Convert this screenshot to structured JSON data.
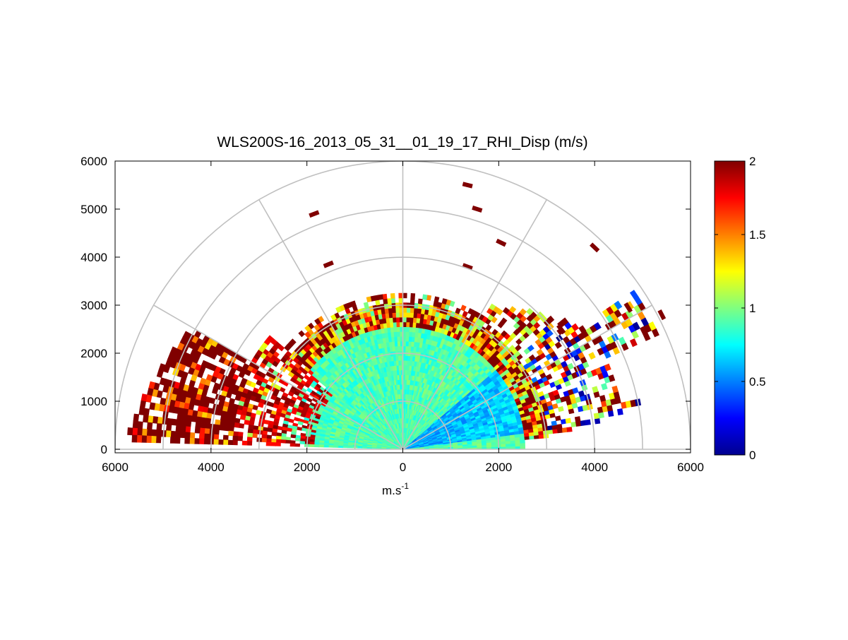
{
  "chart_data": {
    "type": "heatmap",
    "title": "WLS200S-16_2013_05_31__01_19_17_RHI_Disp (m/s)",
    "xlabel": "m.s",
    "xlabel_superscript": "-1",
    "ylabel": "",
    "xlim": [
      -6000,
      6000
    ],
    "ylim": [
      0,
      6000
    ],
    "x_ticks": [
      -6000,
      -4000,
      -2000,
      0,
      2000,
      4000,
      6000
    ],
    "x_tick_labels": [
      "6000",
      "4000",
      "2000",
      "0",
      "2000",
      "4000",
      "6000"
    ],
    "y_ticks": [
      0,
      1000,
      2000,
      3000,
      4000,
      5000,
      6000
    ],
    "y_tick_labels": [
      "0",
      "1000",
      "2000",
      "3000",
      "4000",
      "5000",
      "6000"
    ],
    "polar_grid": {
      "rings": [
        1000,
        2000,
        3000,
        4000,
        5000,
        6000
      ],
      "spokes_deg": [
        0,
        30,
        60,
        90,
        120,
        150,
        180
      ]
    },
    "colorbar": {
      "colormap": "jet",
      "range": [
        0,
        2
      ],
      "ticks": [
        0,
        0.5,
        1,
        1.5,
        2
      ],
      "tick_labels": [
        "0",
        "0.5",
        "1",
        "1.5",
        "2"
      ]
    },
    "data_summary": {
      "core_range_m": 3200,
      "core_value_typical": 0.9,
      "low_value_sector_deg": [
        8,
        40
      ],
      "low_value_sector_value": 0.55,
      "high_value_edges": "outer range gates above 2500 m, strongest on left side (elevation 140-175 deg)",
      "right_band_elevation_deg": [
        25,
        32
      ],
      "right_band_range_m": [
        4000,
        6000
      ]
    },
    "isolated_high_cells": [
      {
        "x": -1850,
        "y": 4900,
        "value": 2
      },
      {
        "x": -1550,
        "y": 3850,
        "value": 2
      },
      {
        "x": 1350,
        "y": 5500,
        "value": 2
      },
      {
        "x": 1550,
        "y": 5000,
        "value": 2
      },
      {
        "x": 2050,
        "y": 4300,
        "value": 2
      },
      {
        "x": 1350,
        "y": 3800,
        "value": 2
      },
      {
        "x": 4000,
        "y": 4200,
        "value": 2
      },
      {
        "x": 5400,
        "y": 2800,
        "value": 2
      },
      {
        "x": 3300,
        "y": 2500,
        "value": 2
      },
      {
        "x": 4700,
        "y": 2950,
        "value": 2
      }
    ]
  }
}
